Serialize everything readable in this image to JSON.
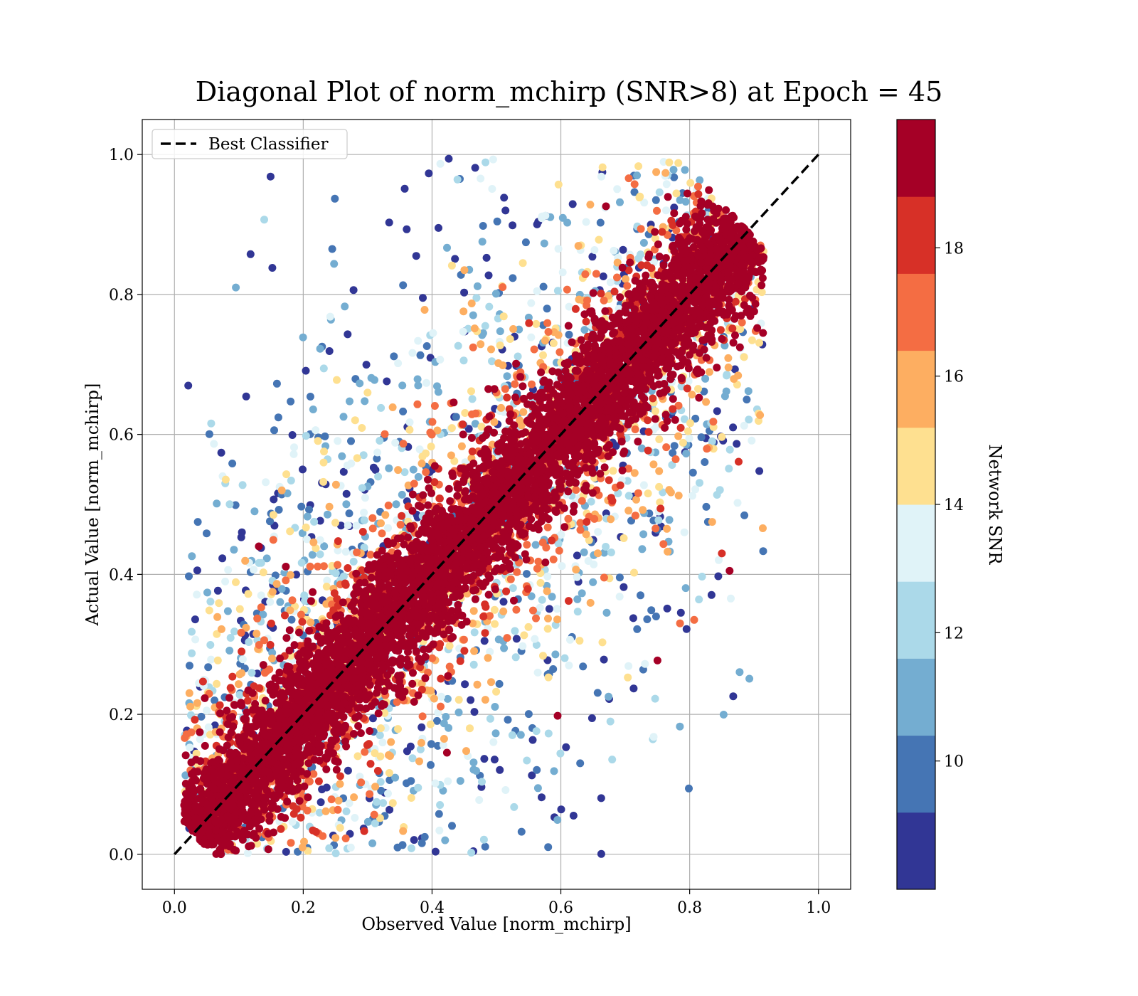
{
  "chart_data": {
    "type": "scatter",
    "title": "Diagonal Plot of norm_mchirp (SNR>8) at Epoch = 45",
    "xlabel": "Observed Value [norm_mchirp]",
    "ylabel": "Actual Value [norm_mchirp]",
    "xlim": [
      -0.05,
      1.05
    ],
    "ylim": [
      -0.05,
      1.05
    ],
    "xticks": [
      "0.0",
      "0.2",
      "0.4",
      "0.6",
      "0.8",
      "1.0"
    ],
    "yticks": [
      "0.0",
      "0.2",
      "0.4",
      "0.6",
      "0.8",
      "1.0"
    ],
    "grid": true,
    "legend": {
      "location": "upper-left",
      "entries": [
        {
          "label": "Best Classifier",
          "style": "dashed",
          "color": "#000000"
        }
      ]
    },
    "reference_line": {
      "x": [
        0.0,
        1.0
      ],
      "y": [
        0.0,
        1.0
      ],
      "style": "dashed",
      "color": "#000000"
    },
    "colorbar": {
      "label": "Network SNR",
      "range": [
        8,
        20
      ],
      "ticks": [
        "10",
        "12",
        "14",
        "16",
        "18"
      ],
      "tick_values": [
        10,
        12,
        14,
        16,
        18
      ],
      "colors": [
        "#313695",
        "#4575b4",
        "#74add1",
        "#abd9e9",
        "#e0f3f8",
        "#fee090",
        "#fdae61",
        "#f46d43",
        "#d73027",
        "#a50026"
      ]
    },
    "series": [
      {
        "type": "scatter-density",
        "description_of_distribution": "points spread around y = x; high-SNR points cluster tightly on the diagonal, low-SNR points spread further away",
        "approx_point_count": 40000
      }
    ],
    "outliers": [
      {
        "x": 0.152,
        "y": 0.838,
        "snr": 9
      },
      {
        "x": 0.245,
        "y": 0.865,
        "snr": 10
      },
      {
        "x": 0.243,
        "y": 0.764,
        "snr": 11
      },
      {
        "x": 0.204,
        "y": 0.691,
        "snr": 9
      },
      {
        "x": 0.131,
        "y": 0.44,
        "snr": 19
      },
      {
        "x": 0.173,
        "y": 0.411,
        "snr": 19
      },
      {
        "x": 0.153,
        "y": 0.385,
        "snr": 9
      },
      {
        "x": 0.141,
        "y": 0.361,
        "snr": 9
      },
      {
        "x": 0.426,
        "y": 0.994,
        "snr": 9
      },
      {
        "x": 0.395,
        "y": 0.973,
        "snr": 9
      },
      {
        "x": 0.467,
        "y": 0.981,
        "snr": 9
      },
      {
        "x": 0.785,
        "y": 0.33,
        "snr": 17
      },
      {
        "x": 0.807,
        "y": 0.335,
        "snr": 17
      },
      {
        "x": 0.75,
        "y": 0.277,
        "snr": 19
      },
      {
        "x": 0.63,
        "y": 0.13,
        "snr": 10
      },
      {
        "x": 0.608,
        "y": 0.153,
        "snr": 9
      },
      {
        "x": 0.595,
        "y": 0.198,
        "snr": 19
      },
      {
        "x": 0.59,
        "y": 0.053,
        "snr": 9
      },
      {
        "x": 0.675,
        "y": 0.222,
        "snr": 9
      },
      {
        "x": 0.713,
        "y": 0.237,
        "snr": 9
      },
      {
        "x": 0.728,
        "y": 0.264,
        "snr": 10
      },
      {
        "x": 0.876,
        "y": 0.561,
        "snr": 18
      },
      {
        "x": 0.835,
        "y": 0.475,
        "snr": 16
      },
      {
        "x": 0.862,
        "y": 0.405,
        "snr": 19
      },
      {
        "x": 0.85,
        "y": 0.43,
        "snr": 18
      }
    ]
  }
}
